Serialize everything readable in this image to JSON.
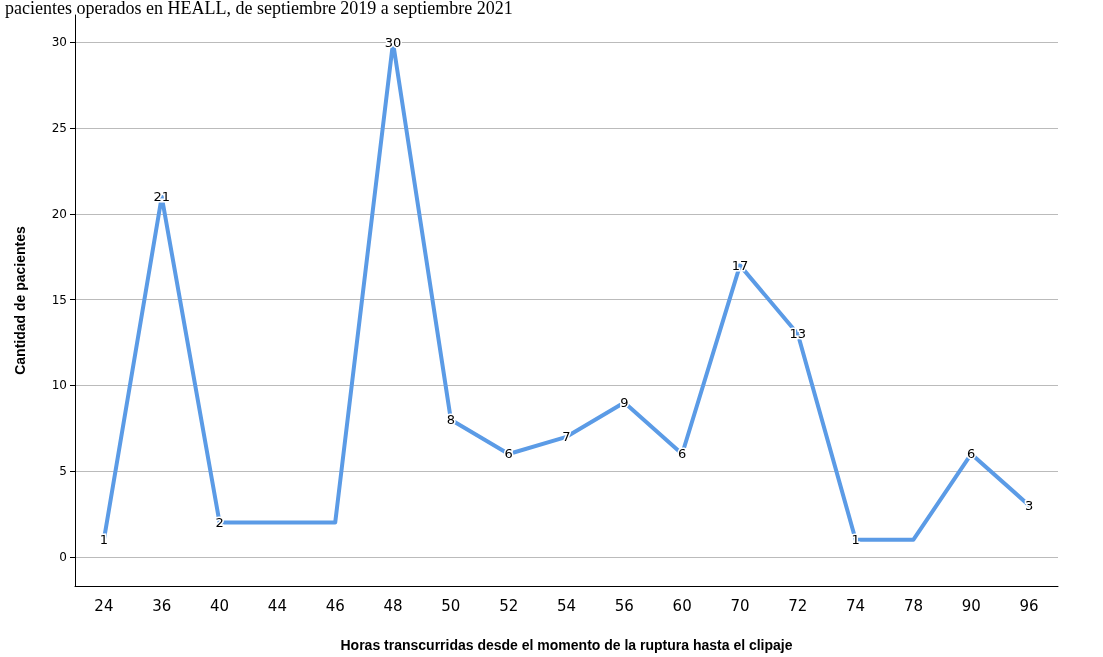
{
  "chart_data": {
    "type": "line",
    "title": "pacientes operados en HEALL, de septiembre 2019 a septiembre 2021",
    "xlabel": "Horas transcurridas desde el momento de la ruptura hasta el clipaje",
    "ylabel": "Cantidad de pacientes",
    "categories": [
      "24",
      "36",
      "40",
      "44",
      "46",
      "48",
      "50",
      "52",
      "54",
      "56",
      "60",
      "70",
      "72",
      "74",
      "78",
      "90",
      "96"
    ],
    "series": [
      {
        "color": "#5b9be6",
        "values": [
          1,
          21,
          2,
          2,
          2,
          30,
          8,
          6,
          7,
          9,
          6,
          17,
          13,
          1,
          1,
          6,
          3
        ],
        "value_labels": [
          "1",
          "21",
          "2",
          null,
          null,
          "30",
          "8",
          "6",
          "7",
          "9",
          "6",
          "17",
          "13",
          "1",
          null,
          "6",
          "3"
        ]
      }
    ],
    "ylim": [
      -1.7,
      31.6
    ],
    "yticks": [
      0,
      5,
      10,
      15,
      20,
      25,
      30
    ],
    "grid": "y",
    "marker": "none",
    "line_style": "solid"
  }
}
